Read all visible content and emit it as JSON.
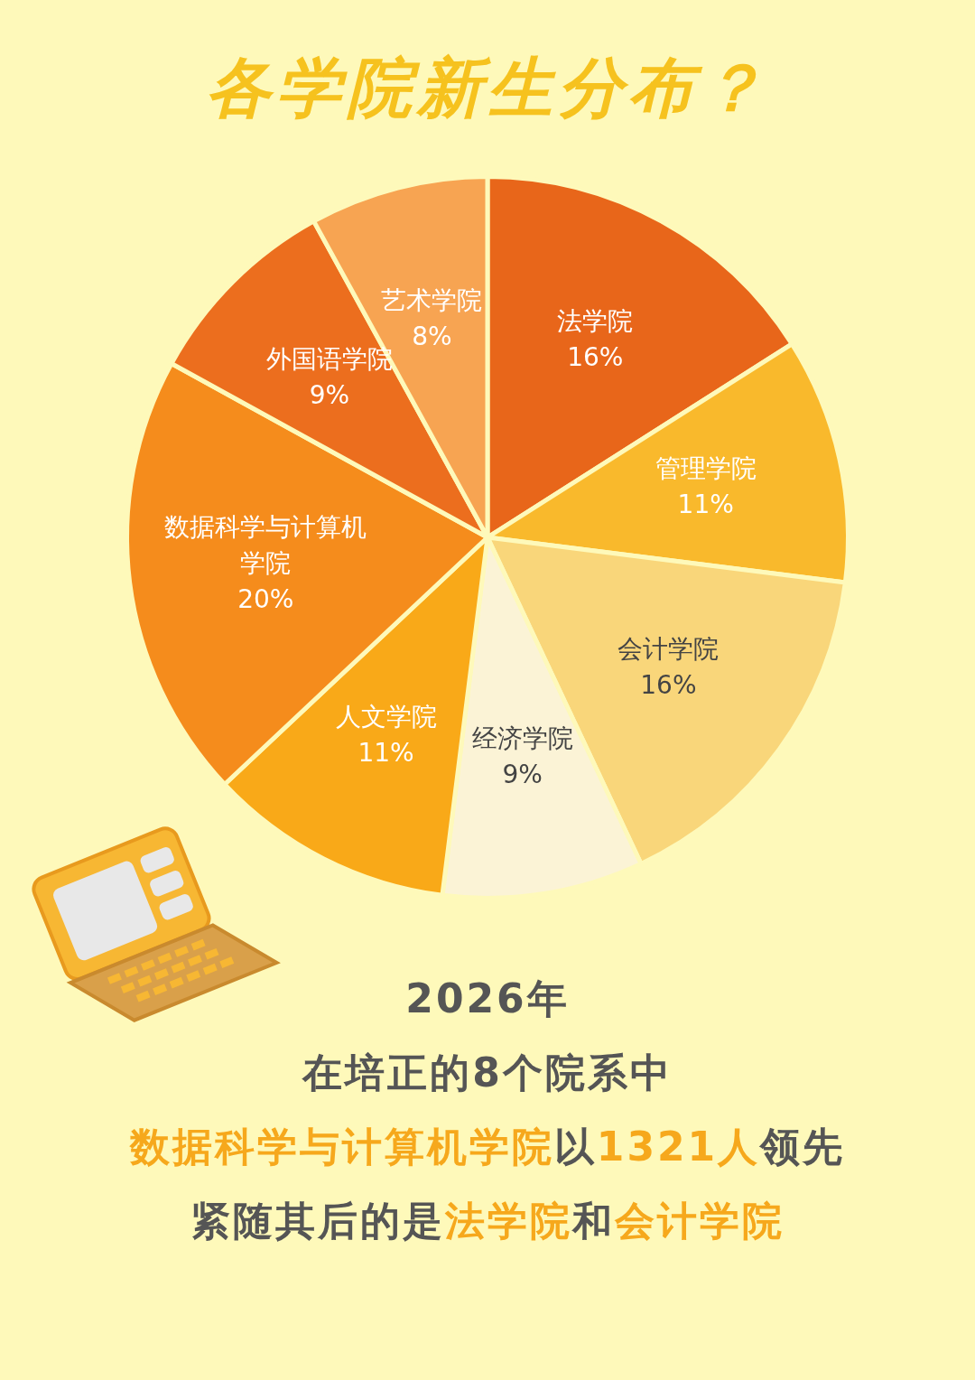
{
  "chart_data": {
    "type": "pie",
    "title": "各学院新生分布？",
    "categories": [
      "法学院",
      "管理学院",
      "会计学院",
      "经济学院",
      "人文学院",
      "数据科学与计算机学院",
      "外国语学院",
      "艺术学院"
    ],
    "values": [
      16,
      11,
      16,
      9,
      11,
      20,
      9,
      8
    ],
    "value_labels": [
      "16%",
      "11%",
      "16%",
      "9%",
      "11%",
      "20%",
      "9%",
      "8%"
    ],
    "colors": [
      "#E8661A",
      "#F9B92C",
      "#F9D67A",
      "#FBF3D6",
      "#F9A918",
      "#F58C1C",
      "#EC6E1E",
      "#F7A452"
    ],
    "data_labels": true
  },
  "caption": [
    [
      {
        "text": "2026年"
      }
    ],
    [
      {
        "text": "在培正的8个院系中"
      }
    ],
    [
      {
        "text": "数据科学与计算机学院",
        "highlight": true
      },
      {
        "text": "以"
      },
      {
        "text": "1321人",
        "highlight": true
      },
      {
        "text": "领先"
      }
    ],
    [
      {
        "text": "紧随其后的是"
      },
      {
        "text": "法学院",
        "highlight": true
      },
      {
        "text": "和"
      },
      {
        "text": "会计学院",
        "highlight": true
      }
    ]
  ]
}
